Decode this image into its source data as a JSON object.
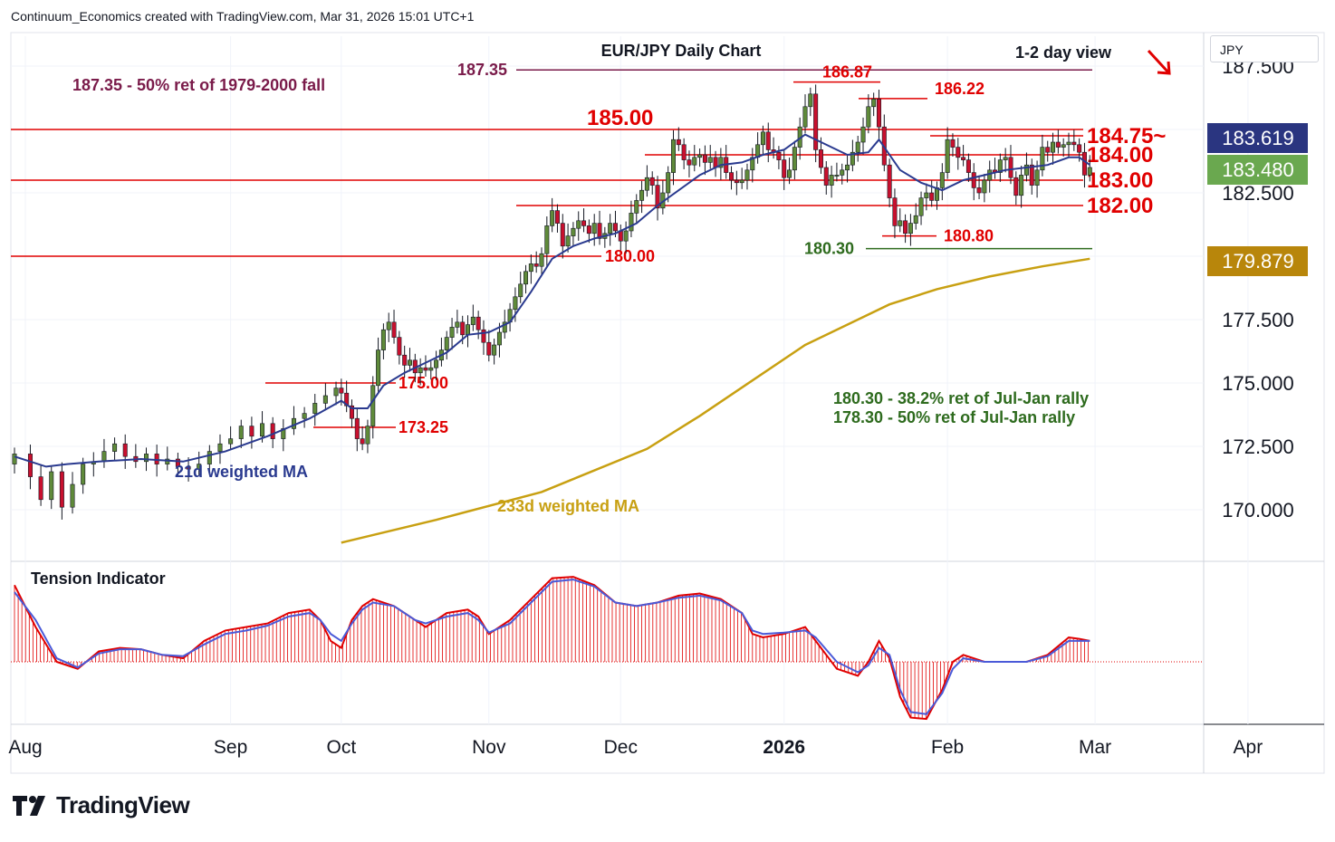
{
  "header": {
    "created_by": "Continuum_Economics created with TradingView.com, Mar 31, 2026 15:01 UTC+1"
  },
  "symbol_box": "JPY",
  "footer": {
    "brand": "TradingView"
  },
  "colors": {
    "up": "#5f8a3a",
    "down": "#c8102e",
    "resistance_line": "#e00000",
    "ma21": "#2a3a8f",
    "ma233": "#c8a012",
    "maroon": "#7a1b4a",
    "green_text": "#2e6b1e",
    "price_box_blue": "#2a3580",
    "price_box_green": "#6aa84f",
    "price_box_gold": "#b8860b"
  },
  "chart_data": {
    "type": "candlestick",
    "title": "EUR/JPY Daily Chart",
    "subtitle": "1-2 day view",
    "y_axis": {
      "ticks": [
        170.0,
        172.5,
        175.0,
        177.5,
        182.5
      ],
      "tick_labels": [
        "170.000",
        "172.500",
        "175.000",
        "177.500",
        "182.500"
      ],
      "partial_top_label": "187.500",
      "range": [
        168.6,
        188.2
      ]
    },
    "x_axis": {
      "labels": [
        "Aug",
        "Sep",
        "Oct",
        "Nov",
        "Dec",
        "2026",
        "Feb",
        "Mar",
        "Apr"
      ],
      "label_days": [
        0,
        41,
        62,
        90,
        115,
        146,
        177,
        205,
        234
      ]
    },
    "price_labels": {
      "last_close": "183.480",
      "ma21_value": "183.619",
      "ma233_value": "179.879"
    },
    "levels": [
      {
        "value": 187.35,
        "label": "187.35",
        "style": "maroon"
      },
      {
        "value": 186.87,
        "label": "186.87",
        "style": "red-short"
      },
      {
        "value": 186.22,
        "label": "186.22",
        "style": "red-short"
      },
      {
        "value": 185.0,
        "label": "185.00",
        "style": "red-full"
      },
      {
        "value": 184.75,
        "label": "184.75~",
        "style": "red-short"
      },
      {
        "value": 184.0,
        "label": "184.00",
        "style": "red-short"
      },
      {
        "value": 183.0,
        "label": "183.00",
        "style": "red-full"
      },
      {
        "value": 182.0,
        "label": "182.00",
        "style": "red-short"
      },
      {
        "value": 180.8,
        "label": "180.80",
        "style": "red-short"
      },
      {
        "value": 180.3,
        "label": "180.30",
        "style": "green"
      },
      {
        "value": 180.0,
        "label": "180.00",
        "style": "red-full"
      },
      {
        "value": 175.0,
        "label": "175.00",
        "style": "red-short"
      },
      {
        "value": 173.25,
        "label": "173.25",
        "style": "red-short"
      }
    ],
    "annotations": [
      {
        "text": "187.35 - 50% ret of 1979-2000 fall",
        "color": "maroon"
      },
      {
        "text": "180.30 - 38.2% ret of Jul-Jan rally",
        "color": "green"
      },
      {
        "text": "178.30 - 50% ret of Jul-Jan rally",
        "color": "green"
      },
      {
        "text": "21d weighted MA",
        "color": "blue"
      },
      {
        "text": "233d weighted MA",
        "color": "gold"
      }
    ],
    "close_path": [
      [
        0,
        172.2
      ],
      [
        3,
        171.3
      ],
      [
        5,
        170.4
      ],
      [
        7,
        171.5
      ],
      [
        9,
        170.1
      ],
      [
        11,
        171.0
      ],
      [
        13,
        171.8
      ],
      [
        15,
        171.9
      ],
      [
        17,
        172.3
      ],
      [
        19,
        172.6
      ],
      [
        21,
        172.1
      ],
      [
        23,
        171.9
      ],
      [
        25,
        172.2
      ],
      [
        27,
        171.8
      ],
      [
        29,
        172.0
      ],
      [
        31,
        171.7
      ],
      [
        33,
        171.6
      ],
      [
        35,
        171.8
      ],
      [
        37,
        172.3
      ],
      [
        39,
        172.6
      ],
      [
        41,
        172.8
      ],
      [
        43,
        173.3
      ],
      [
        45,
        172.9
      ],
      [
        47,
        173.4
      ],
      [
        49,
        172.8
      ],
      [
        51,
        173.2
      ],
      [
        53,
        173.6
      ],
      [
        55,
        173.8
      ],
      [
        57,
        174.2
      ],
      [
        59,
        174.5
      ],
      [
        61,
        174.8
      ],
      [
        62,
        174.6
      ],
      [
        63,
        174.1
      ],
      [
        64,
        173.6
      ],
      [
        65,
        172.8
      ],
      [
        66,
        172.6
      ],
      [
        67,
        173.3
      ],
      [
        68,
        174.9
      ],
      [
        69,
        176.3
      ],
      [
        70,
        177.1
      ],
      [
        71,
        177.4
      ],
      [
        72,
        176.8
      ],
      [
        73,
        176.1
      ],
      [
        74,
        175.7
      ],
      [
        75,
        175.9
      ],
      [
        76,
        175.4
      ],
      [
        77,
        175.6
      ],
      [
        78,
        175.5
      ],
      [
        79,
        175.6
      ],
      [
        80,
        175.9
      ],
      [
        81,
        176.3
      ],
      [
        82,
        176.8
      ],
      [
        83,
        177.2
      ],
      [
        84,
        177.4
      ],
      [
        85,
        176.9
      ],
      [
        86,
        177.3
      ],
      [
        87,
        177.6
      ],
      [
        88,
        177.1
      ],
      [
        89,
        176.6
      ],
      [
        90,
        176.1
      ],
      [
        91,
        176.5
      ],
      [
        92,
        177.0
      ],
      [
        93,
        177.4
      ],
      [
        94,
        177.9
      ],
      [
        95,
        178.4
      ],
      [
        96,
        178.9
      ],
      [
        97,
        179.4
      ],
      [
        98,
        179.7
      ],
      [
        99,
        179.6
      ],
      [
        100,
        180.1
      ],
      [
        101,
        181.2
      ],
      [
        102,
        181.8
      ],
      [
        103,
        181.3
      ],
      [
        104,
        180.4
      ],
      [
        105,
        180.8
      ],
      [
        106,
        181.1
      ],
      [
        107,
        181.4
      ],
      [
        108,
        181.2
      ],
      [
        109,
        180.9
      ],
      [
        110,
        181.3
      ],
      [
        111,
        180.7
      ],
      [
        112,
        180.9
      ],
      [
        113,
        181.3
      ],
      [
        114,
        181.0
      ],
      [
        115,
        180.6
      ],
      [
        116,
        181.0
      ],
      [
        117,
        181.7
      ],
      [
        118,
        182.2
      ],
      [
        119,
        182.6
      ],
      [
        120,
        183.1
      ],
      [
        121,
        182.8
      ],
      [
        122,
        181.9
      ],
      [
        123,
        182.5
      ],
      [
        124,
        183.3
      ],
      [
        125,
        184.6
      ],
      [
        126,
        184.4
      ],
      [
        127,
        183.8
      ],
      [
        128,
        183.6
      ],
      [
        129,
        183.9
      ],
      [
        130,
        184.0
      ],
      [
        131,
        183.7
      ],
      [
        132,
        183.9
      ],
      [
        133,
        183.5
      ],
      [
        134,
        183.9
      ],
      [
        135,
        183.3
      ],
      [
        136,
        183.0
      ],
      [
        137,
        182.9
      ],
      [
        138,
        183.0
      ],
      [
        139,
        183.4
      ],
      [
        140,
        183.9
      ],
      [
        141,
        184.4
      ],
      [
        142,
        184.9
      ],
      [
        143,
        184.2
      ],
      [
        144,
        184.1
      ],
      [
        145,
        183.8
      ],
      [
        146,
        183.1
      ],
      [
        147,
        183.4
      ],
      [
        148,
        184.3
      ],
      [
        149,
        185.1
      ],
      [
        150,
        185.9
      ],
      [
        151,
        186.4
      ],
      [
        152,
        184.2
      ],
      [
        153,
        183.5
      ],
      [
        154,
        182.8
      ],
      [
        155,
        183.2
      ],
      [
        156,
        183.2
      ],
      [
        157,
        183.4
      ],
      [
        158,
        183.6
      ],
      [
        159,
        184.1
      ],
      [
        160,
        184.5
      ],
      [
        161,
        185.1
      ],
      [
        162,
        185.9
      ],
      [
        163,
        186.2
      ],
      [
        164,
        185.1
      ],
      [
        165,
        183.6
      ],
      [
        166,
        182.3
      ],
      [
        167,
        181.2
      ],
      [
        168,
        181.4
      ],
      [
        169,
        180.9
      ],
      [
        170,
        181.3
      ],
      [
        171,
        181.6
      ],
      [
        172,
        182.3
      ],
      [
        173,
        182.5
      ],
      [
        174,
        182.2
      ],
      [
        175,
        182.7
      ],
      [
        176,
        183.3
      ],
      [
        177,
        184.6
      ],
      [
        178,
        184.3
      ],
      [
        179,
        183.9
      ],
      [
        180,
        183.8
      ],
      [
        181,
        183.3
      ],
      [
        182,
        182.7
      ],
      [
        183,
        182.5
      ],
      [
        184,
        183.0
      ],
      [
        185,
        183.4
      ],
      [
        186,
        183.3
      ],
      [
        187,
        183.8
      ],
      [
        188,
        183.9
      ],
      [
        189,
        183.1
      ],
      [
        190,
        182.4
      ],
      [
        191,
        183.2
      ],
      [
        192,
        183.6
      ],
      [
        193,
        182.8
      ],
      [
        194,
        183.4
      ],
      [
        195,
        184.3
      ],
      [
        196,
        184.1
      ],
      [
        197,
        184.5
      ],
      [
        198,
        184.3
      ],
      [
        199,
        184.4
      ],
      [
        200,
        184.5
      ],
      [
        201,
        184.4
      ],
      [
        202,
        184.1
      ],
      [
        203,
        183.2
      ],
      [
        204,
        183.5
      ]
    ],
    "ma21_path": [
      [
        0,
        172.1
      ],
      [
        6,
        171.7
      ],
      [
        10,
        171.8
      ],
      [
        16,
        171.9
      ],
      [
        24,
        172.0
      ],
      [
        32,
        171.9
      ],
      [
        40,
        172.3
      ],
      [
        48,
        172.9
      ],
      [
        56,
        173.6
      ],
      [
        62,
        174.3
      ],
      [
        64,
        174.0
      ],
      [
        67,
        174.0
      ],
      [
        70,
        174.9
      ],
      [
        74,
        175.4
      ],
      [
        78,
        175.8
      ],
      [
        82,
        176.2
      ],
      [
        86,
        176.9
      ],
      [
        90,
        177.0
      ],
      [
        94,
        177.4
      ],
      [
        98,
        178.6
      ],
      [
        102,
        179.9
      ],
      [
        106,
        180.4
      ],
      [
        110,
        180.7
      ],
      [
        114,
        180.9
      ],
      [
        118,
        181.3
      ],
      [
        122,
        182.0
      ],
      [
        126,
        182.6
      ],
      [
        130,
        183.2
      ],
      [
        134,
        183.6
      ],
      [
        138,
        183.7
      ],
      [
        142,
        184.0
      ],
      [
        146,
        184.2
      ],
      [
        150,
        184.8
      ],
      [
        153,
        184.5
      ],
      [
        158,
        184.0
      ],
      [
        162,
        184.1
      ],
      [
        164,
        184.6
      ],
      [
        168,
        183.4
      ],
      [
        172,
        182.9
      ],
      [
        176,
        182.6
      ],
      [
        180,
        183.0
      ],
      [
        184,
        183.2
      ],
      [
        188,
        183.4
      ],
      [
        192,
        183.5
      ],
      [
        196,
        183.6
      ],
      [
        200,
        183.9
      ],
      [
        202,
        183.9
      ],
      [
        204,
        183.6
      ]
    ],
    "ma233_path": [
      [
        62,
        168.7
      ],
      [
        80,
        169.6
      ],
      [
        100,
        170.7
      ],
      [
        120,
        172.4
      ],
      [
        130,
        173.7
      ],
      [
        140,
        175.1
      ],
      [
        150,
        176.5
      ],
      [
        160,
        177.5
      ],
      [
        166,
        178.1
      ],
      [
        175,
        178.7
      ],
      [
        185,
        179.2
      ],
      [
        195,
        179.6
      ],
      [
        204,
        179.9
      ]
    ],
    "tension_indicator": {
      "title": "Tension Indicator",
      "range": [
        -1.0,
        1.3
      ],
      "fast": [
        [
          0,
          1.1
        ],
        [
          4,
          0.5
        ],
        [
          8,
          0.0
        ],
        [
          12,
          -0.1
        ],
        [
          16,
          0.15
        ],
        [
          20,
          0.2
        ],
        [
          24,
          0.18
        ],
        [
          28,
          0.1
        ],
        [
          32,
          0.05
        ],
        [
          36,
          0.3
        ],
        [
          40,
          0.45
        ],
        [
          44,
          0.5
        ],
        [
          48,
          0.55
        ],
        [
          52,
          0.7
        ],
        [
          56,
          0.75
        ],
        [
          58,
          0.6
        ],
        [
          60,
          0.3
        ],
        [
          62,
          0.2
        ],
        [
          64,
          0.6
        ],
        [
          66,
          0.8
        ],
        [
          68,
          0.9
        ],
        [
          72,
          0.8
        ],
        [
          76,
          0.6
        ],
        [
          78,
          0.5
        ],
        [
          82,
          0.7
        ],
        [
          86,
          0.75
        ],
        [
          88,
          0.65
        ],
        [
          90,
          0.4
        ],
        [
          94,
          0.6
        ],
        [
          98,
          0.9
        ],
        [
          102,
          1.2
        ],
        [
          106,
          1.22
        ],
        [
          110,
          1.1
        ],
        [
          114,
          0.85
        ],
        [
          118,
          0.8
        ],
        [
          122,
          0.85
        ],
        [
          126,
          0.95
        ],
        [
          130,
          0.98
        ],
        [
          134,
          0.9
        ],
        [
          138,
          0.7
        ],
        [
          140,
          0.4
        ],
        [
          142,
          0.35
        ],
        [
          146,
          0.4
        ],
        [
          150,
          0.5
        ],
        [
          152,
          0.3
        ],
        [
          156,
          -0.1
        ],
        [
          160,
          -0.2
        ],
        [
          162,
          0.0
        ],
        [
          164,
          0.3
        ],
        [
          166,
          0.05
        ],
        [
          168,
          -0.5
        ],
        [
          170,
          -0.8
        ],
        [
          173,
          -0.82
        ],
        [
          176,
          -0.4
        ],
        [
          178,
          0.0
        ],
        [
          180,
          0.1
        ],
        [
          184,
          0.0
        ],
        [
          188,
          0.0
        ],
        [
          192,
          0.0
        ],
        [
          196,
          0.1
        ],
        [
          200,
          0.35
        ],
        [
          202,
          0.33
        ],
        [
          204,
          0.3
        ]
      ],
      "slow": [
        [
          0,
          1.0
        ],
        [
          4,
          0.6
        ],
        [
          8,
          0.05
        ],
        [
          12,
          -0.08
        ],
        [
          16,
          0.12
        ],
        [
          20,
          0.18
        ],
        [
          24,
          0.18
        ],
        [
          28,
          0.1
        ],
        [
          32,
          0.08
        ],
        [
          36,
          0.25
        ],
        [
          40,
          0.4
        ],
        [
          44,
          0.45
        ],
        [
          48,
          0.52
        ],
        [
          52,
          0.65
        ],
        [
          56,
          0.7
        ],
        [
          58,
          0.6
        ],
        [
          60,
          0.4
        ],
        [
          62,
          0.3
        ],
        [
          64,
          0.55
        ],
        [
          66,
          0.75
        ],
        [
          68,
          0.85
        ],
        [
          72,
          0.8
        ],
        [
          76,
          0.6
        ],
        [
          78,
          0.55
        ],
        [
          82,
          0.65
        ],
        [
          86,
          0.7
        ],
        [
          88,
          0.6
        ],
        [
          90,
          0.42
        ],
        [
          94,
          0.55
        ],
        [
          98,
          0.85
        ],
        [
          102,
          1.15
        ],
        [
          106,
          1.18
        ],
        [
          110,
          1.08
        ],
        [
          114,
          0.85
        ],
        [
          118,
          0.8
        ],
        [
          122,
          0.85
        ],
        [
          126,
          0.92
        ],
        [
          130,
          0.95
        ],
        [
          134,
          0.88
        ],
        [
          138,
          0.7
        ],
        [
          140,
          0.45
        ],
        [
          142,
          0.4
        ],
        [
          146,
          0.42
        ],
        [
          150,
          0.45
        ],
        [
          152,
          0.35
        ],
        [
          156,
          0.0
        ],
        [
          160,
          -0.15
        ],
        [
          162,
          -0.05
        ],
        [
          164,
          0.2
        ],
        [
          166,
          0.1
        ],
        [
          168,
          -0.4
        ],
        [
          170,
          -0.72
        ],
        [
          173,
          -0.75
        ],
        [
          176,
          -0.45
        ],
        [
          178,
          -0.1
        ],
        [
          180,
          0.05
        ],
        [
          184,
          0.0
        ],
        [
          188,
          0.0
        ],
        [
          192,
          0.0
        ],
        [
          196,
          0.08
        ],
        [
          200,
          0.3
        ],
        [
          202,
          0.3
        ],
        [
          204,
          0.3
        ]
      ]
    }
  }
}
